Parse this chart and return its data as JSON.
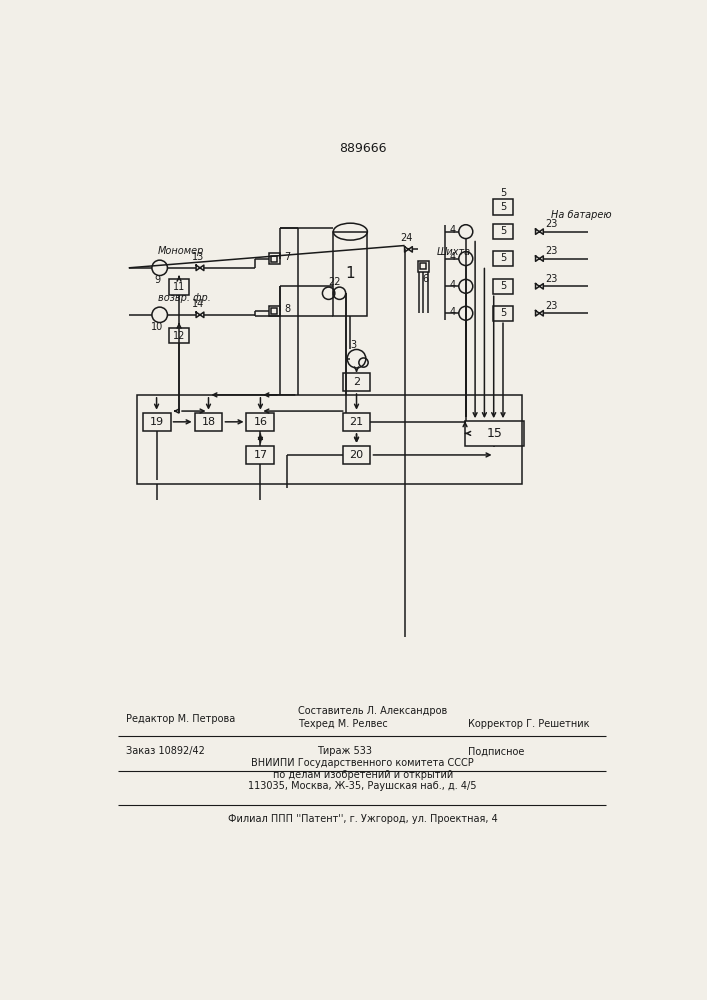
{
  "title": "889666",
  "bg": "#f2efe8",
  "lc": "#1a1a1a",
  "tc": "#1a1a1a",
  "lw": 1.1,
  "footer": {
    "line1_left": "Редактор М. Петрова",
    "line1_mid": "Составитель Л. Александров",
    "line2_mid": "Техред М. Релвес",
    "line2_right": "Корректор Г. Решетник",
    "line3_left": "Заказ 10892/42",
    "line3_mid": "Тираж 533",
    "line3_right": "Подписное",
    "line4": "ВНИИПИ Государственного комитета СССР",
    "line5": "по делам изобретений и открытий",
    "line6": "113035, Москва, Ж-35, Раушская наб., д. 4/5",
    "line7": "Филиал ППП ''Патент'', г. Ужгород, ул. Проектная, 4"
  }
}
